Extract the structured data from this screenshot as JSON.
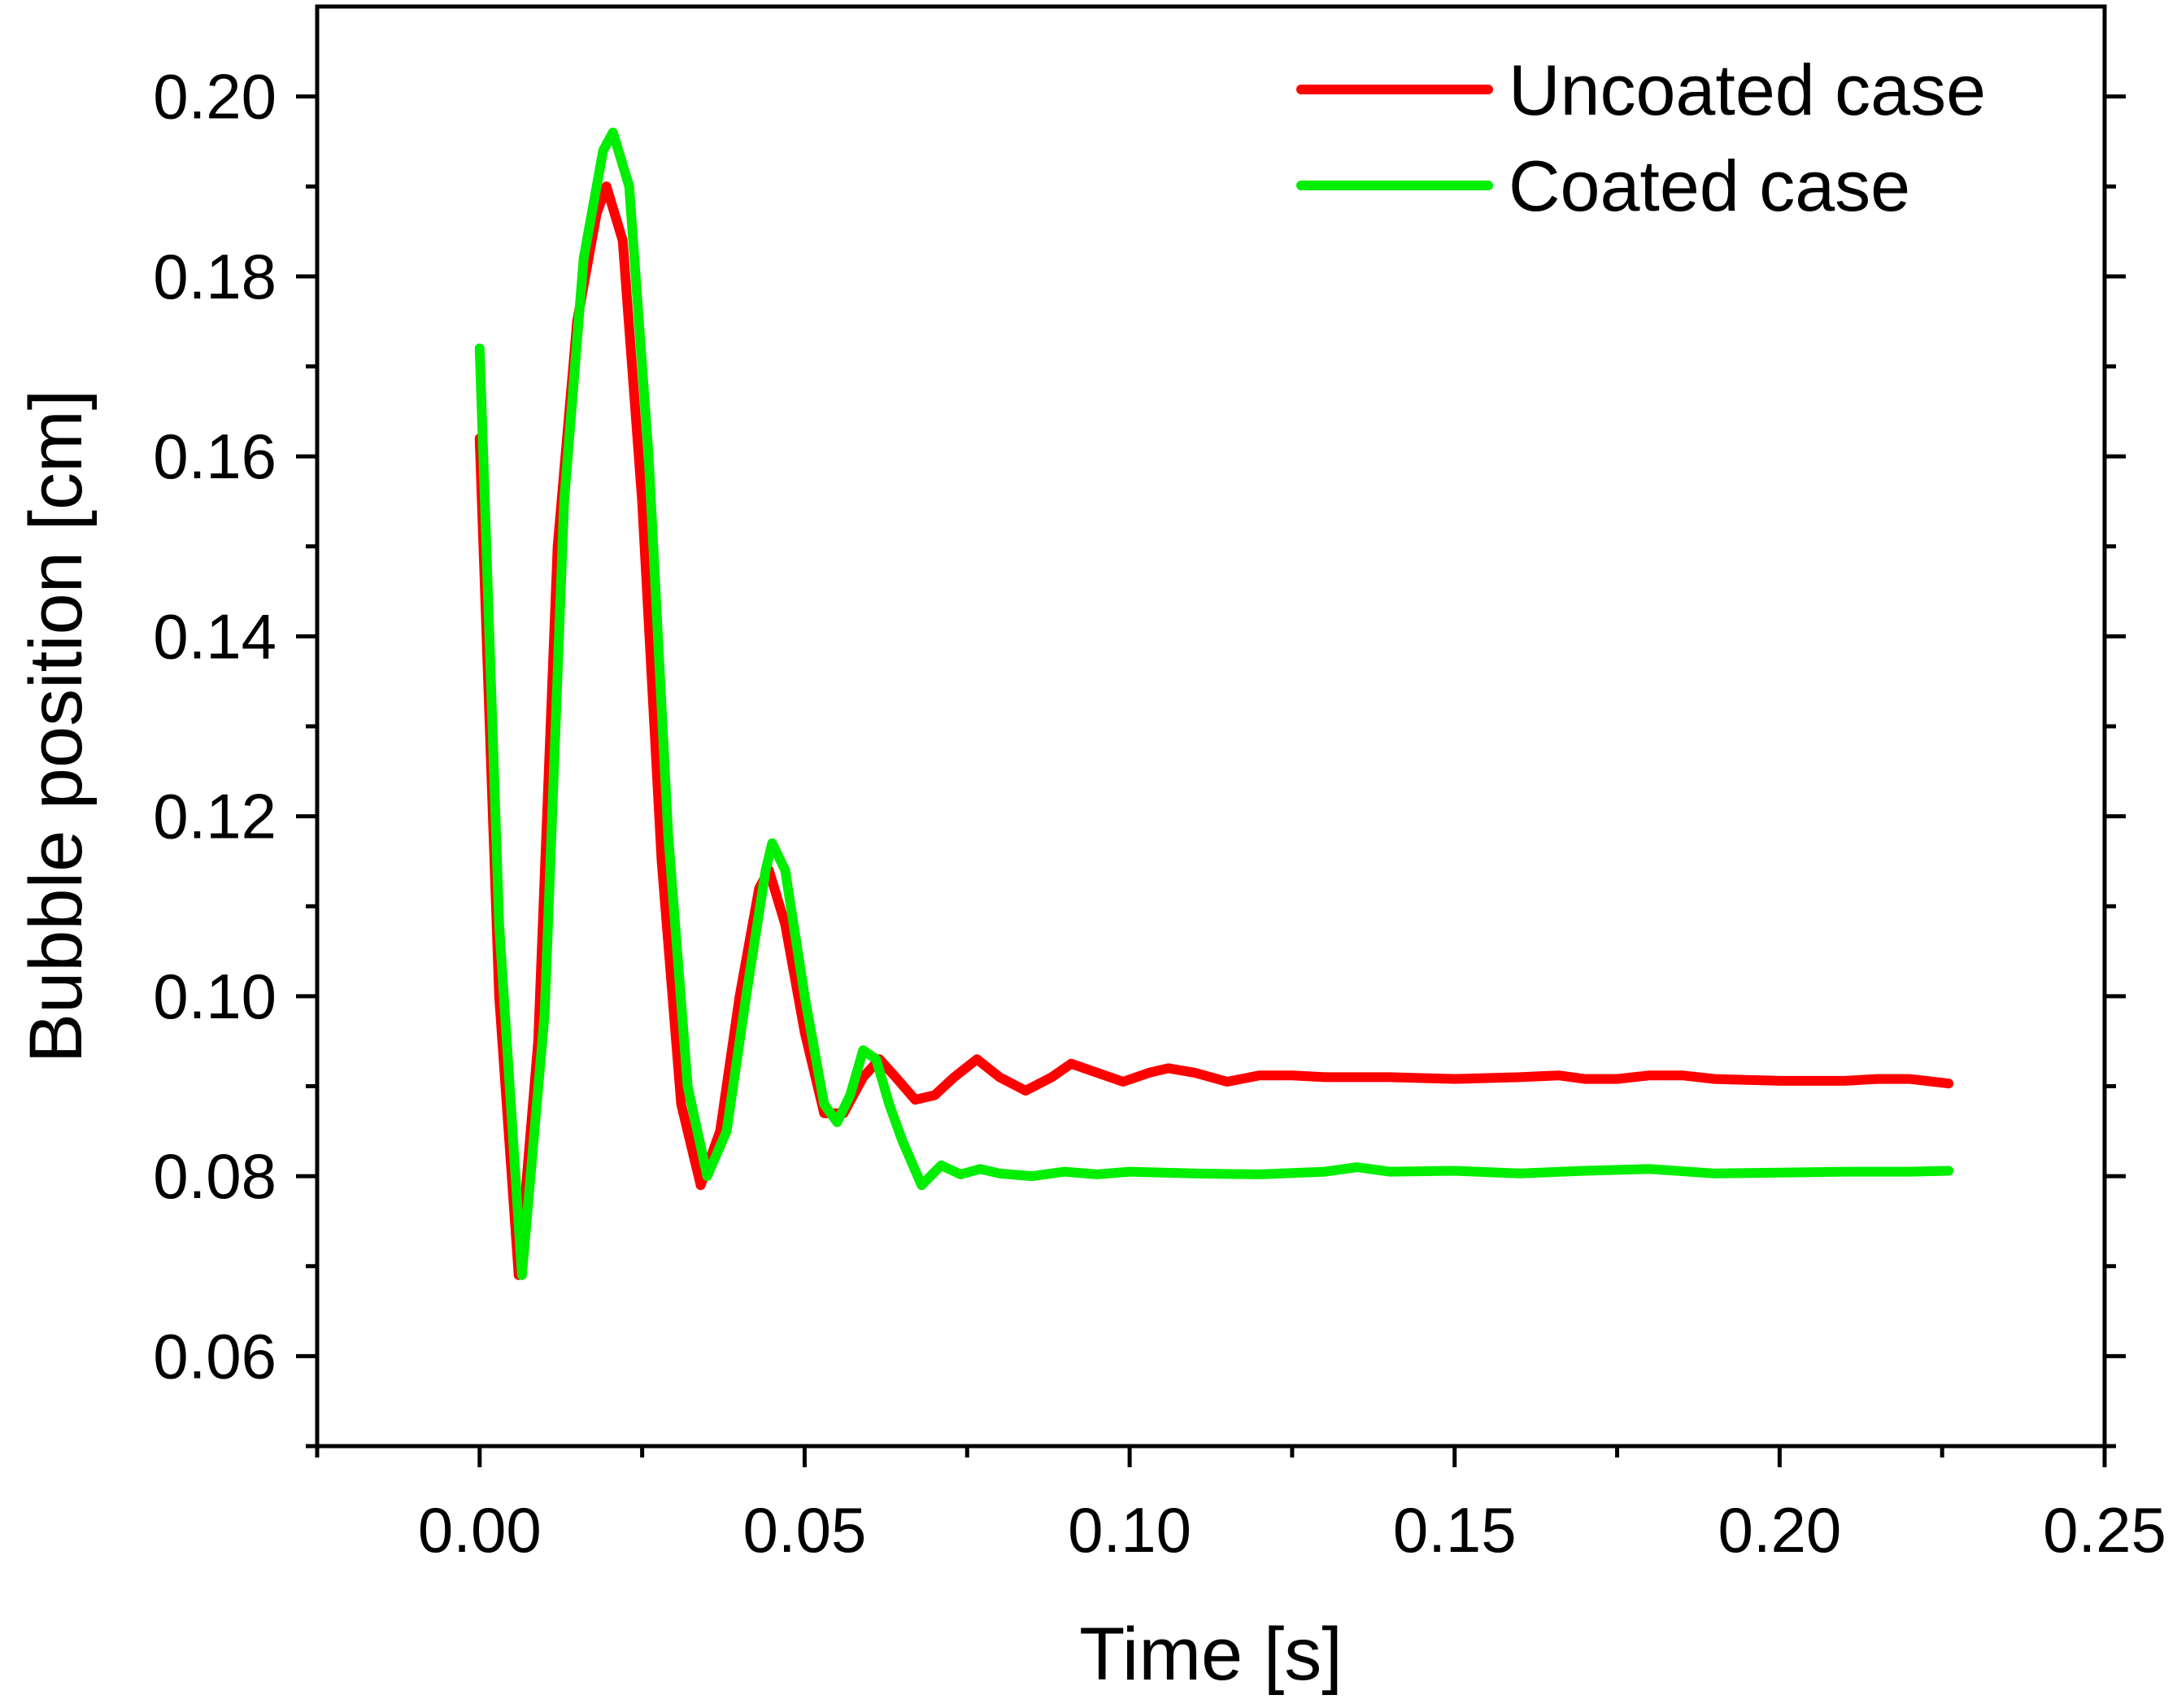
{
  "chart_data": {
    "type": "line",
    "title": "",
    "xlabel": "Time [s]",
    "ylabel": "Bubble position [cm]",
    "xlim": [
      -0.025,
      0.25
    ],
    "ylim": [
      0.05,
      0.21
    ],
    "x_ticks": [
      "0.00",
      "0.05",
      "0.10",
      "0.15",
      "0.20",
      "0.25"
    ],
    "y_ticks": [
      "0.06",
      "0.08",
      "0.10",
      "0.12",
      "0.14",
      "0.16",
      "0.18",
      "0.20"
    ],
    "grid": false,
    "legend_position": "top-right",
    "series": [
      {
        "name": "Uncoated case",
        "color": "#ff0000",
        "x": [
          0.0,
          0.003,
          0.006,
          0.009,
          0.012,
          0.015,
          0.018,
          0.0195,
          0.022,
          0.025,
          0.028,
          0.031,
          0.034,
          0.037,
          0.04,
          0.043,
          0.0445,
          0.047,
          0.05,
          0.053,
          0.056,
          0.059,
          0.0615,
          0.064,
          0.067,
          0.07,
          0.073,
          0.0765,
          0.08,
          0.084,
          0.088,
          0.091,
          0.095,
          0.099,
          0.103,
          0.106,
          0.11,
          0.115,
          0.12,
          0.125,
          0.13,
          0.14,
          0.15,
          0.16,
          0.166,
          0.17,
          0.175,
          0.18,
          0.185,
          0.19,
          0.2,
          0.21,
          0.215,
          0.22,
          0.226
        ],
        "y": [
          0.162,
          0.1,
          0.069,
          0.095,
          0.15,
          0.175,
          0.187,
          0.19,
          0.184,
          0.155,
          0.115,
          0.088,
          0.079,
          0.085,
          0.1,
          0.112,
          0.114,
          0.108,
          0.096,
          0.087,
          0.087,
          0.091,
          0.093,
          0.091,
          0.0885,
          0.089,
          0.091,
          0.093,
          0.091,
          0.0895,
          0.091,
          0.0925,
          0.0915,
          0.0905,
          0.0915,
          0.092,
          0.0915,
          0.0905,
          0.0912,
          0.0912,
          0.091,
          0.091,
          0.0908,
          0.091,
          0.0912,
          0.0908,
          0.0908,
          0.0912,
          0.0912,
          0.0908,
          0.0906,
          0.0906,
          0.0908,
          0.0908,
          0.0903
        ]
      },
      {
        "name": "Coated case",
        "color": "#00ee00",
        "x": [
          0.0,
          0.003,
          0.0065,
          0.01,
          0.013,
          0.016,
          0.019,
          0.0205,
          0.023,
          0.026,
          0.029,
          0.032,
          0.035,
          0.038,
          0.041,
          0.044,
          0.045,
          0.047,
          0.05,
          0.053,
          0.055,
          0.057,
          0.059,
          0.061,
          0.063,
          0.065,
          0.068,
          0.071,
          0.074,
          0.077,
          0.08,
          0.085,
          0.09,
          0.095,
          0.1,
          0.11,
          0.12,
          0.13,
          0.135,
          0.14,
          0.15,
          0.16,
          0.17,
          0.18,
          0.19,
          0.2,
          0.21,
          0.22,
          0.226
        ],
        "y": [
          0.172,
          0.108,
          0.069,
          0.098,
          0.155,
          0.182,
          0.194,
          0.196,
          0.19,
          0.16,
          0.118,
          0.09,
          0.08,
          0.085,
          0.1,
          0.114,
          0.117,
          0.114,
          0.1,
          0.088,
          0.086,
          0.089,
          0.094,
          0.093,
          0.088,
          0.084,
          0.079,
          0.0812,
          0.0802,
          0.0808,
          0.0803,
          0.08,
          0.0805,
          0.0802,
          0.0805,
          0.0803,
          0.0802,
          0.0805,
          0.081,
          0.0805,
          0.0806,
          0.0803,
          0.0806,
          0.0808,
          0.0803,
          0.0804,
          0.0805,
          0.0805,
          0.0806
        ]
      }
    ]
  }
}
